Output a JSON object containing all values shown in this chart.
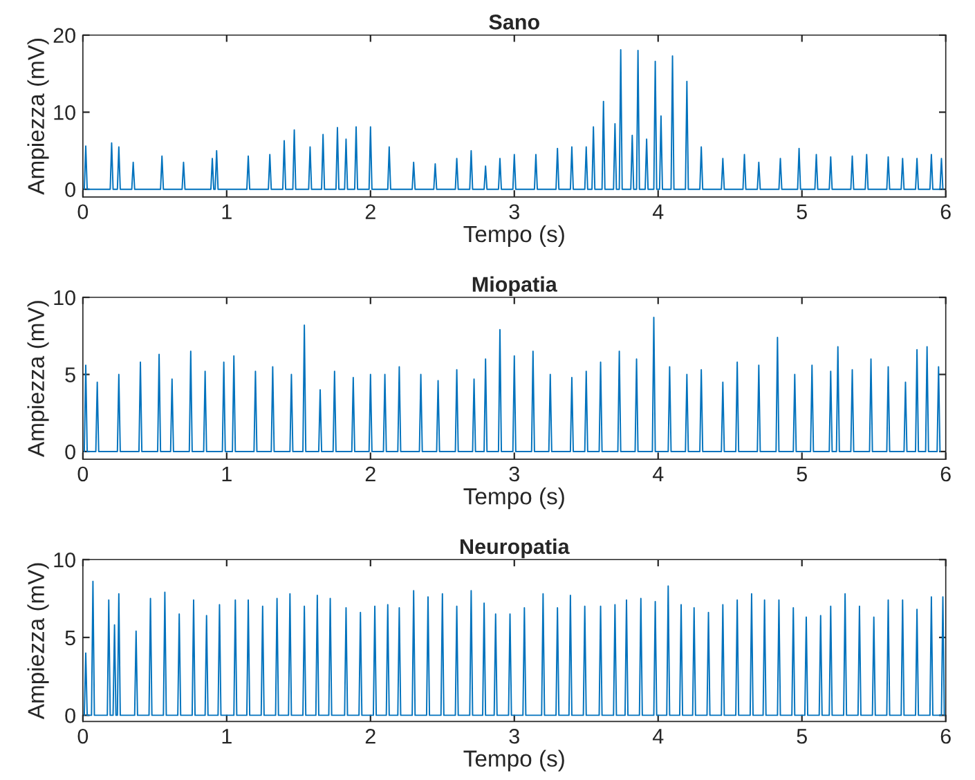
{
  "chart_data": [
    {
      "type": "line",
      "title": "Sano",
      "xlabel": "Tempo (s)",
      "ylabel": "Ampiezza (mV)",
      "xlim": [
        0,
        6
      ],
      "xticks": [
        0,
        1,
        2,
        3,
        4,
        5,
        6
      ],
      "ylim": [
        -1,
        20
      ],
      "yticks": [
        0,
        10,
        20
      ],
      "grid": false,
      "series": [
        {
          "color": "#0072bd",
          "x": [
            0.01,
            0.02,
            0.03,
            0.19,
            0.2,
            0.21,
            0.24,
            0.25,
            0.26,
            0.34,
            0.35,
            0.36,
            0.54,
            0.55,
            0.56,
            0.69,
            0.7,
            0.71,
            0.89,
            0.9,
            0.91,
            0.92,
            0.93,
            0.94,
            1.14,
            1.15,
            1.16,
            1.29,
            1.3,
            1.31,
            1.39,
            1.4,
            1.41,
            1.46,
            1.47,
            1.48,
            1.57,
            1.58,
            1.59,
            1.66,
            1.67,
            1.68,
            1.76,
            1.77,
            1.78,
            1.82,
            1.83,
            1.84,
            1.89,
            1.9,
            1.91,
            1.99,
            2.0,
            2.01,
            2.12,
            2.13,
            2.14,
            2.29,
            2.3,
            2.31,
            2.44,
            2.45,
            2.46,
            2.59,
            2.6,
            2.61,
            2.69,
            2.7,
            2.71,
            2.79,
            2.8,
            2.81,
            2.89,
            2.9,
            2.91,
            2.99,
            3.0,
            3.01,
            3.14,
            3.15,
            3.16,
            3.29,
            3.3,
            3.31,
            3.39,
            3.4,
            3.41,
            3.49,
            3.5,
            3.51,
            3.54,
            3.55,
            3.56,
            3.61,
            3.62,
            3.63,
            3.69,
            3.7,
            3.71,
            3.73,
            3.74,
            3.75,
            3.81,
            3.82,
            3.83,
            3.85,
            3.86,
            3.87,
            3.91,
            3.92,
            3.93,
            3.97,
            3.98,
            3.99,
            4.01,
            4.02,
            4.03,
            4.09,
            4.1,
            4.11,
            4.19,
            4.2,
            4.21,
            4.29,
            4.3,
            4.31,
            4.44,
            4.45,
            4.46,
            4.59,
            4.6,
            4.61,
            4.69,
            4.7,
            4.71,
            4.84,
            4.85,
            4.86,
            4.97,
            4.98,
            4.99,
            5.09,
            5.1,
            5.11,
            5.19,
            5.2,
            5.21,
            5.34,
            5.35,
            5.36,
            5.44,
            5.45,
            5.46,
            5.59,
            5.6,
            5.61,
            5.69,
            5.7,
            5.71,
            5.79,
            5.8,
            5.81,
            5.89,
            5.9,
            5.91,
            5.96,
            5.97,
            5.98
          ],
          "values": [
            0,
            5.6,
            0,
            0,
            6,
            0,
            0,
            5.5,
            0,
            0,
            3.5,
            0,
            0,
            4.3,
            0,
            0,
            3.5,
            0,
            0,
            4,
            0,
            0,
            5,
            0,
            0,
            4.3,
            0,
            0,
            4.5,
            0,
            0,
            6.3,
            0,
            0,
            7.7,
            0,
            0,
            5.5,
            0,
            0,
            7.1,
            0,
            0,
            8,
            0,
            0,
            6.5,
            0,
            0,
            8.1,
            0,
            0,
            8.1,
            0,
            0,
            5.5,
            0,
            0,
            3.5,
            0,
            0,
            3.3,
            0,
            0,
            4,
            0,
            0,
            5,
            0,
            0,
            3,
            0,
            0,
            4,
            0,
            0,
            4.5,
            0,
            0,
            4.5,
            0,
            0,
            5.3,
            0,
            0,
            5.5,
            0,
            0,
            5.5,
            0,
            0,
            8.1,
            0,
            0,
            11.4,
            0,
            0,
            8.5,
            0,
            0,
            18.1,
            0,
            0,
            7,
            0,
            0,
            18,
            0,
            0,
            6.5,
            0,
            0,
            16.6,
            0,
            0,
            9.5,
            0,
            0,
            17.3,
            0,
            0,
            14,
            0,
            0,
            5.5,
            0,
            0,
            4,
            0,
            0,
            4.5,
            0,
            0,
            3.5,
            0,
            0,
            4,
            0,
            0,
            5.3,
            0,
            0,
            4.5,
            0,
            0,
            4.2,
            0,
            0,
            4.3,
            0,
            0,
            4.5,
            0,
            0,
            4.2,
            0,
            0,
            4,
            0,
            0,
            4,
            0,
            0,
            4.5,
            0,
            0,
            4,
            0
          ]
        }
      ]
    },
    {
      "type": "line",
      "title": "Miopatia",
      "xlabel": "Tempo (s)",
      "ylabel": "Ampiezza (mV)",
      "xlim": [
        0,
        6
      ],
      "xticks": [
        0,
        1,
        2,
        3,
        4,
        5,
        6
      ],
      "ylim": [
        -0.5,
        10
      ],
      "yticks": [
        0,
        5,
        10
      ],
      "grid": false,
      "series": [
        {
          "color": "#0072bd",
          "x": [
            0.01,
            0.02,
            0.03,
            0.09,
            0.1,
            0.11,
            0.24,
            0.25,
            0.26,
            0.39,
            0.4,
            0.41,
            0.52,
            0.53,
            0.54,
            0.61,
            0.62,
            0.63,
            0.74,
            0.75,
            0.76,
            0.84,
            0.85,
            0.86,
            0.97,
            0.98,
            0.99,
            1.04,
            1.05,
            1.06,
            1.19,
            1.2,
            1.21,
            1.31,
            1.32,
            1.33,
            1.44,
            1.45,
            1.46,
            1.53,
            1.54,
            1.55,
            1.64,
            1.65,
            1.66,
            1.74,
            1.75,
            1.76,
            1.87,
            1.88,
            1.89,
            1.99,
            2.0,
            2.01,
            2.09,
            2.1,
            2.11,
            2.19,
            2.2,
            2.21,
            2.34,
            2.35,
            2.36,
            2.46,
            2.47,
            2.48,
            2.59,
            2.6,
            2.61,
            2.71,
            2.72,
            2.73,
            2.79,
            2.8,
            2.81,
            2.89,
            2.9,
            2.91,
            2.99,
            3.0,
            3.01,
            3.12,
            3.13,
            3.14,
            3.24,
            3.25,
            3.26,
            3.39,
            3.4,
            3.41,
            3.49,
            3.5,
            3.51,
            3.59,
            3.6,
            3.61,
            3.72,
            3.73,
            3.74,
            3.84,
            3.85,
            3.86,
            3.96,
            3.97,
            3.98,
            4.07,
            4.08,
            4.09,
            4.19,
            4.2,
            4.21,
            4.29,
            4.3,
            4.31,
            4.44,
            4.45,
            4.46,
            4.54,
            4.55,
            4.56,
            4.69,
            4.7,
            4.71,
            4.82,
            4.83,
            4.84,
            4.94,
            4.95,
            4.96,
            5.06,
            5.07,
            5.08,
            5.19,
            5.2,
            5.21,
            5.24,
            5.25,
            5.26,
            5.34,
            5.35,
            5.36,
            5.47,
            5.48,
            5.49,
            5.59,
            5.6,
            5.61,
            5.71,
            5.72,
            5.73,
            5.79,
            5.8,
            5.81,
            5.86,
            5.87,
            5.88,
            5.94,
            5.95,
            5.96
          ],
          "values": [
            0,
            5.6,
            0,
            0,
            4.5,
            0,
            0,
            5,
            0,
            0,
            5.8,
            0,
            0,
            6.3,
            0,
            0,
            4.7,
            0,
            0,
            6.5,
            0,
            0,
            5.2,
            0,
            0,
            5.8,
            0,
            0,
            6.2,
            0,
            0,
            5.2,
            0,
            0,
            5.5,
            0,
            0,
            5,
            0,
            0,
            8.2,
            0,
            0,
            4,
            0,
            0,
            5.2,
            0,
            0,
            4.8,
            0,
            0,
            5,
            0,
            0,
            5,
            0,
            0,
            5.5,
            0,
            0,
            5,
            0,
            0,
            4.6,
            0,
            0,
            5.3,
            0,
            0,
            4.7,
            0,
            0,
            6,
            0,
            0,
            7.9,
            0,
            0,
            6.2,
            0,
            0,
            6.5,
            0,
            0,
            5,
            0,
            0,
            4.8,
            0,
            0,
            5.2,
            0,
            0,
            5.8,
            0,
            0,
            6.5,
            0,
            0,
            6,
            0,
            0,
            8.7,
            0,
            0,
            5.5,
            0,
            0,
            5,
            0,
            0,
            5.3,
            0,
            0,
            4.5,
            0,
            0,
            5.8,
            0,
            0,
            5.6,
            0,
            0,
            7.4,
            0,
            0,
            5,
            0,
            0,
            5.6,
            0,
            0,
            5.2,
            0,
            0,
            6.8,
            0,
            0,
            5.3,
            0,
            0,
            6,
            0,
            0,
            5.5,
            0,
            0,
            4.5,
            0,
            0,
            6.6,
            0,
            0,
            6.8,
            0,
            0,
            5.5,
            0
          ]
        }
      ]
    },
    {
      "type": "line",
      "title": "Neuropatia",
      "xlabel": "Tempo (s)",
      "ylabel": "Ampiezza (mV)",
      "xlim": [
        0,
        6
      ],
      "xticks": [
        0,
        1,
        2,
        3,
        4,
        5,
        6
      ],
      "ylim": [
        -0.4,
        10
      ],
      "yticks": [
        0,
        5,
        10
      ],
      "grid": false,
      "series": [
        {
          "color": "#0072bd",
          "x": [
            0.01,
            0.02,
            0.03,
            0.06,
            0.07,
            0.08,
            0.17,
            0.18,
            0.19,
            0.21,
            0.22,
            0.23,
            0.24,
            0.25,
            0.26,
            0.36,
            0.37,
            0.38,
            0.46,
            0.47,
            0.48,
            0.56,
            0.57,
            0.58,
            0.66,
            0.67,
            0.68,
            0.76,
            0.77,
            0.78,
            0.85,
            0.86,
            0.87,
            0.94,
            0.95,
            0.96,
            1.05,
            1.06,
            1.07,
            1.14,
            1.15,
            1.16,
            1.24,
            1.25,
            1.26,
            1.34,
            1.35,
            1.36,
            1.43,
            1.44,
            1.45,
            1.53,
            1.54,
            1.55,
            1.62,
            1.63,
            1.64,
            1.71,
            1.72,
            1.73,
            1.82,
            1.83,
            1.84,
            1.92,
            1.93,
            1.94,
            2.02,
            2.03,
            2.04,
            2.11,
            2.12,
            2.13,
            2.19,
            2.2,
            2.21,
            2.29,
            2.3,
            2.31,
            2.39,
            2.4,
            2.41,
            2.49,
            2.5,
            2.51,
            2.59,
            2.6,
            2.61,
            2.69,
            2.7,
            2.71,
            2.78,
            2.79,
            2.8,
            2.86,
            2.87,
            2.88,
            2.96,
            2.97,
            2.98,
            3.06,
            3.07,
            3.08,
            3.19,
            3.2,
            3.21,
            3.29,
            3.3,
            3.31,
            3.38,
            3.39,
            3.4,
            3.48,
            3.49,
            3.5,
            3.59,
            3.6,
            3.61,
            3.69,
            3.7,
            3.71,
            3.77,
            3.78,
            3.79,
            3.87,
            3.88,
            3.89,
            3.97,
            3.98,
            3.99,
            4.06,
            4.07,
            4.08,
            4.15,
            4.16,
            4.17,
            4.24,
            4.25,
            4.26,
            4.34,
            4.35,
            4.36,
            4.44,
            4.45,
            4.46,
            4.54,
            4.55,
            4.56,
            4.64,
            4.65,
            4.66,
            4.73,
            4.74,
            4.75,
            4.83,
            4.84,
            4.85,
            4.93,
            4.94,
            4.95,
            5.02,
            5.03,
            5.04,
            5.12,
            5.13,
            5.14,
            5.19,
            5.2,
            5.21,
            5.29,
            5.3,
            5.31,
            5.39,
            5.4,
            5.41,
            5.49,
            5.5,
            5.51,
            5.59,
            5.6,
            5.61,
            5.69,
            5.7,
            5.71,
            5.79,
            5.8,
            5.81,
            5.89,
            5.9,
            5.91,
            5.97,
            5.98,
            5.99
          ],
          "values": [
            0,
            4,
            0,
            0,
            8.6,
            0,
            0,
            7.4,
            0,
            0,
            5.8,
            0,
            0,
            7.8,
            0,
            0,
            5.4,
            0,
            0,
            7.5,
            0,
            0,
            7.9,
            0,
            0,
            6.5,
            0,
            0,
            7.4,
            0,
            0,
            6.4,
            0,
            0,
            7.1,
            0,
            0,
            7.4,
            0,
            0,
            7.4,
            0,
            0,
            7,
            0,
            0,
            7.5,
            0,
            0,
            7.8,
            0,
            0,
            7,
            0,
            0,
            7.7,
            0,
            0,
            7.5,
            0,
            0,
            6.9,
            0,
            0,
            6.6,
            0,
            0,
            7,
            0,
            0,
            7.1,
            0,
            0,
            6.9,
            0,
            0,
            8,
            0,
            0,
            7.6,
            0,
            0,
            7.8,
            0,
            0,
            7,
            0,
            0,
            8,
            0,
            0,
            7.2,
            0,
            0,
            6.5,
            0,
            0,
            6.5,
            0,
            0,
            6.9,
            0,
            0,
            7.8,
            0,
            0,
            6.9,
            0,
            0,
            7.7,
            0,
            0,
            7,
            0,
            0,
            7,
            0,
            0,
            7.1,
            0,
            0,
            7.4,
            0,
            0,
            7.5,
            0,
            0,
            7.3,
            0,
            0,
            8.3,
            0,
            0,
            7.1,
            0,
            0,
            6.9,
            0,
            0,
            6.6,
            0,
            0,
            7.1,
            0,
            0,
            7.4,
            0,
            0,
            7.8,
            0,
            0,
            7.4,
            0,
            0,
            7.4,
            0,
            0,
            6.9,
            0,
            0,
            6.3,
            0,
            0,
            6.4,
            0,
            0,
            7,
            0,
            0,
            7.8,
            0,
            0,
            7,
            0,
            0,
            6.3,
            0,
            0,
            7.4,
            0,
            0,
            7.4,
            0,
            0,
            6.8,
            0,
            0,
            7.6,
            0,
            0,
            7.6,
            0
          ]
        }
      ]
    }
  ]
}
